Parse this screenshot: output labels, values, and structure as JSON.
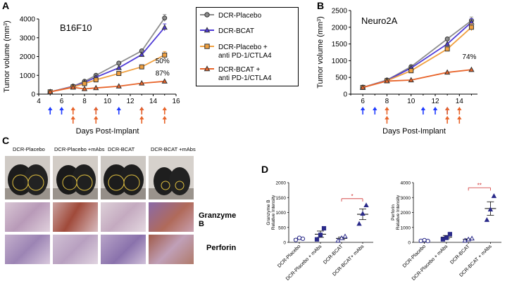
{
  "panel_labels": {
    "a": "A",
    "b": "B",
    "c": "C",
    "d": "D"
  },
  "colors": {
    "gray": "#8c8c8c",
    "blue": "#4f3bd6",
    "orange_light": "#f0a040",
    "orange_dark": "#e8642a",
    "arrow_blue": "#1f3bff",
    "arrow_orange": "#e8642a"
  },
  "chart_data": [
    {
      "id": "A",
      "type": "line",
      "title": "B16F10",
      "xlabel": "Days Post-Implant",
      "ylabel": "Tumor volume (mm3)",
      "ylabel_main": "Tumor volume (mm",
      "ylabel_sup": "3",
      "ylabel_end": ")",
      "xlim": [
        4,
        16
      ],
      "ylim": [
        0,
        4000
      ],
      "x_ticks": [
        4,
        6,
        8,
        10,
        12,
        14,
        16
      ],
      "y_ticks": [
        0,
        1000,
        2000,
        3000,
        4000
      ],
      "x": [
        5,
        7,
        8,
        9,
        11,
        13,
        15
      ],
      "series": [
        {
          "name": "DCR-Placebo",
          "color": "#8c8c8c",
          "marker": "circle",
          "values": [
            120,
            420,
            680,
            1000,
            1650,
            2300,
            4050
          ]
        },
        {
          "name": "DCR-BCAT",
          "color": "#4f3bd6",
          "marker": "triangle",
          "values": [
            120,
            400,
            620,
            900,
            1400,
            2100,
            3550
          ]
        },
        {
          "name": "DCR-Placebo + anti PD-1/CTLA4",
          "color": "#f0a040",
          "marker": "square",
          "values": [
            120,
            380,
            560,
            760,
            1100,
            1450,
            2080
          ]
        },
        {
          "name": "DCR-BCAT + anti PD-1/CTLA4",
          "color": "#e8642a",
          "marker": "triangle",
          "values": [
            120,
            360,
            280,
            330,
            420,
            580,
            680
          ]
        }
      ],
      "annotations": [
        {
          "text": "50%",
          "x": 15,
          "y": 1650
        },
        {
          "text": "87%",
          "x": 15,
          "y": 1000
        }
      ],
      "arrows_blue_days": [
        5,
        6,
        9,
        11,
        13
      ],
      "arrows_orange_days": [
        7,
        9,
        13,
        15
      ]
    },
    {
      "id": "B",
      "type": "line",
      "title": "Neuro2A",
      "xlabel": "Days Post-Implant",
      "ylabel": "Tumor volume (mm3)",
      "ylabel_main": "Tumor volume (mm",
      "ylabel_sup": "3",
      "ylabel_end": ")",
      "xlim": [
        5,
        15.5
      ],
      "ylim": [
        0,
        2500
      ],
      "x_ticks": [
        6,
        8,
        10,
        12,
        14
      ],
      "y_ticks": [
        0,
        500,
        1000,
        1500,
        2000,
        2500
      ],
      "x": [
        6,
        8,
        10,
        13,
        15
      ],
      "series": [
        {
          "name": "DCR-Placebo",
          "color": "#8c8c8c",
          "marker": "circle",
          "values": [
            200,
            420,
            820,
            1650,
            2200
          ]
        },
        {
          "name": "DCR-BCAT",
          "color": "#4f3bd6",
          "marker": "triangle",
          "values": [
            200,
            410,
            780,
            1500,
            2150
          ]
        },
        {
          "name": "DCR-Placebo + anti PD-1/CTLA4",
          "color": "#f0a040",
          "marker": "square",
          "values": [
            200,
            400,
            700,
            1350,
            2000
          ]
        },
        {
          "name": "DCR-BCAT + anti PD-1/CTLA4",
          "color": "#e8642a",
          "marker": "triangle",
          "values": [
            200,
            390,
            420,
            650,
            730
          ]
        }
      ],
      "annotations": [
        {
          "text": "74%",
          "x": 15,
          "y": 1050
        }
      ],
      "arrows_blue_days": [
        6,
        7,
        11,
        12,
        13
      ],
      "arrows_orange_days": [
        8,
        13,
        14
      ]
    },
    {
      "id": "D1",
      "type": "scatter",
      "ylabel_line1": "Granzyme B",
      "ylabel_line2": "Relative Intensity",
      "ylim": [
        0,
        2000
      ],
      "y_ticks": [
        0,
        500,
        1000,
        1500,
        2000
      ],
      "categories": [
        "DCR-Placebo",
        "DCR-Placebo + mAbs",
        "DCR-BCAT",
        "DCR-BCAT+ mAbs"
      ],
      "markers": [
        "circle",
        "square",
        "triangle",
        "triangle"
      ],
      "points": [
        [
          80,
          150,
          120
        ],
        [
          100,
          250,
          470
        ],
        [
          60,
          140,
          200
        ],
        [
          620,
          960,
          1240
        ]
      ],
      "means": [
        117,
        273,
        133,
        940
      ],
      "sems": [
        20,
        105,
        40,
        180
      ],
      "significance": "*",
      "sig_between": [
        2,
        3
      ]
    },
    {
      "id": "D2",
      "type": "scatter",
      "ylabel_line1": "Perforin",
      "ylabel_line2": "Relative Intensity",
      "ylim": [
        0,
        4000
      ],
      "y_ticks": [
        0,
        1000,
        2000,
        3000,
        4000
      ],
      "categories": [
        "DCR-Placebo",
        "DCR-Placebo + mAbs",
        "DCR-BCAT",
        "DCR-BCAT + mAbs"
      ],
      "markers": [
        "circle",
        "square",
        "triangle",
        "triangle"
      ],
      "points": [
        [
          100,
          150,
          90
        ],
        [
          200,
          300,
          550
        ],
        [
          120,
          200,
          260
        ],
        [
          1500,
          2200,
          3100
        ]
      ],
      "means": [
        113,
        350,
        193,
        2267
      ],
      "sems": [
        20,
        110,
        40,
        450
      ],
      "significance": "**",
      "sig_between": [
        2,
        3
      ]
    }
  ],
  "legend": [
    {
      "line1": "DCR-Placebo",
      "line2": "",
      "color": "#8c8c8c",
      "marker": "circle"
    },
    {
      "line1": "DCR-BCAT",
      "line2": "",
      "color": "#4f3bd6",
      "marker": "triangle"
    },
    {
      "line1": "DCR-Placebo +",
      "line2": "anti PD-1/CTLA4",
      "color": "#f0a040",
      "marker": "square"
    },
    {
      "line1": "DCR-BCAT +",
      "line2": "anti PD-1/CTLA4",
      "color": "#e8642a",
      "marker": "triangle"
    }
  ],
  "panel_c": {
    "column_labels": [
      "DCR-Placebo",
      "DCR-Placebo +mAbs",
      "DCR-BCAT",
      "DCR-BCAT +mAbs"
    ],
    "row_labels": [
      "Granzyme B",
      "Perforin"
    ]
  }
}
